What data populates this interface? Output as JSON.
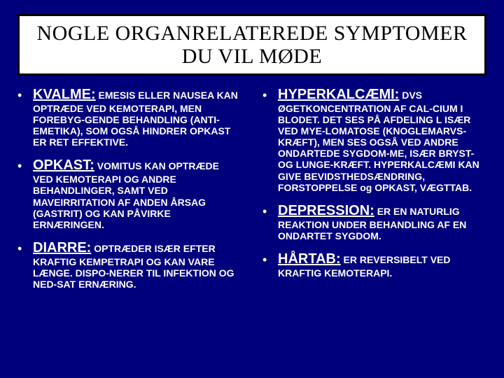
{
  "title": "NOGLE ORGANRELATEREDE SYMPTOMER  DU VIL MØDE",
  "left": [
    {
      "heading": "KVALME:",
      "body": "EMESIS ELLER NAUSEA KAN OPTRÆDE VED KEMOTERAPI, MEN FOREBYG-GENDE BEHANDLING (ANTI-EMETIKA), SOM OGSÅ HINDRER OPKAST ER RET EFFEKTIVE."
    },
    {
      "heading": "OPKAST:",
      "body": "VOMITUS KAN OPTRÆDE VED KEMOTERAPI OG ANDRE BEHANDLINGER, SAMT VED MAVEIRRITATION AF ANDEN ÅRSAG (GASTRIT) OG KAN PÅVIRKE ERNÆRINGEN."
    },
    {
      "heading": "DIARRE:",
      "body": "OPTRÆDER ISÆR EFTER KRAFTIG KEMPETRAPI  OG KAN VARE LÆNGE. DISPO-NERER TIL INFEKTION OG NED-SAT ERNÆRING."
    }
  ],
  "right": [
    {
      "heading": "HYPERKALCÆMI:",
      "body": "DVS ØGETKONCENTRATION AF CAL-CIUM I BLODET.  DET SES PÅ AFDELING  L  ISÆR  VED MYE-LOMATOSE  (KNOGLEMARVS-KRÆFT),  MEN SES OGSÅ VED ANDRE ONDARTEDE SYGDOM-ME,  ISÆR BRYST- OG LUNGE-KRÆFT.    HYPERKALCÆMI KAN GIVE BEVIDSTHEDSÆNDRING, FORSTOPPELSE og OPKAST, VÆGTTAB."
    },
    {
      "heading": "DEPRESSION:",
      "body": "ER EN NATURLIG REAKTION UNDER BEHANDLING AF EN ONDARTET SYGDOM."
    },
    {
      "heading": "HÅRTAB:",
      "body": "ER REVERSIBELT VED KRAFTIG KEMOTERAPI."
    }
  ],
  "colors": {
    "background": "#00007d",
    "title_bg": "#ffffff",
    "title_border": "#000000",
    "text": "#ffffff",
    "title_text": "#000000"
  },
  "typography": {
    "title_font": "Times New Roman",
    "title_size_pt": 30,
    "heading_size_pt": 20,
    "body_size_pt": 14,
    "body_weight": 700
  }
}
